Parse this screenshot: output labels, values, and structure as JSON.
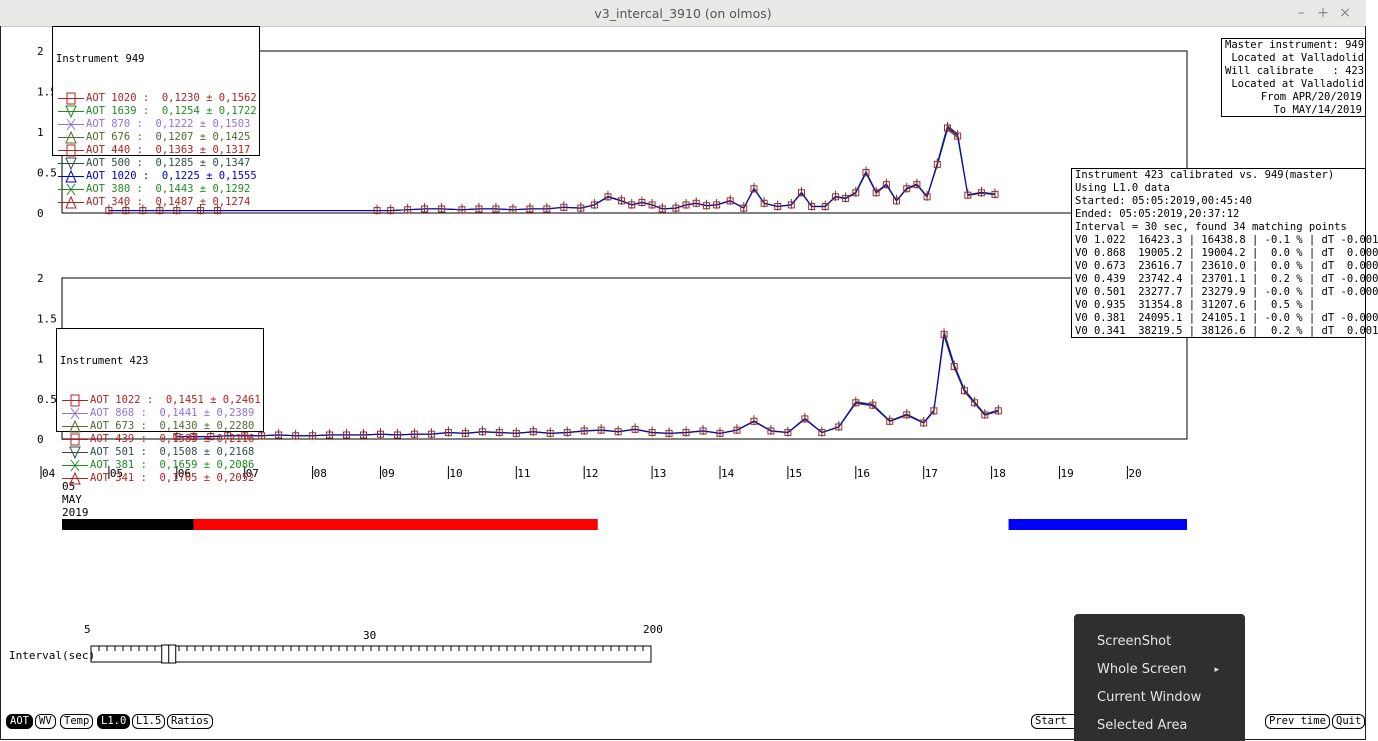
{
  "window": {
    "title": "v3_intercal_3910 (on olmos)",
    "buttons": {
      "minimize": "–",
      "maximize": "+",
      "close": "×"
    }
  },
  "top_plot": {
    "ytick_labels": [
      "2",
      "1.5",
      "1",
      "0.5",
      "0"
    ],
    "legend": {
      "title": "Instrument 949",
      "rows": [
        {
          "label": "AOT 1020 :",
          "value": "0,1230 ± 0,1562",
          "color": "#b22222",
          "marker": "square"
        },
        {
          "label": "AOT 1639 :",
          "value": "0,1254 ± 0,1722",
          "color": "#228b22",
          "marker": "triangle-down"
        },
        {
          "label": "AOT 870 :",
          "value": "0,1222 ± 0,1503",
          "color": "#9370db",
          "marker": "x"
        },
        {
          "label": "AOT 676 :",
          "value": "0,1207 ± 0,1425",
          "color": "#556b2f",
          "marker": "triangle-up"
        },
        {
          "label": "AOT 440 :",
          "value": "0,1363 ± 0,1317",
          "color": "#b22222",
          "marker": "square"
        },
        {
          "label": "AOT 500 :",
          "value": "0,1285 ± 0,1347",
          "color": "#2f4f4f",
          "marker": "triangle-down"
        },
        {
          "label": "AOT 1020 :",
          "value": "0,1225 ± 0,1555",
          "color": "#0000cd",
          "marker": "triangle-up"
        },
        {
          "label": "AOT 380 :",
          "value": "0,1443 ± 0,1292",
          "color": "#228b22",
          "marker": "x"
        },
        {
          "label": "AOT 340 :",
          "value": "0,1487 ± 0,1274",
          "color": "#b22222",
          "marker": "triangle-up"
        }
      ]
    }
  },
  "bottom_plot": {
    "ytick_labels": [
      "2",
      "1.5",
      "1",
      "0.5",
      "0"
    ],
    "legend": {
      "title": "Instrument 423",
      "rows": [
        {
          "label": "AOT 1022 :",
          "value": "0,1451 ± 0,2461",
          "color": "#b22222",
          "marker": "square"
        },
        {
          "label": "AOT 868 :",
          "value": "0,1441 ± 0,2389",
          "color": "#9370db",
          "marker": "x"
        },
        {
          "label": "AOT 673 :",
          "value": "0,1430 ± 0,2280",
          "color": "#556b2f",
          "marker": "triangle-up"
        },
        {
          "label": "AOT 439 :",
          "value": "0,1583 ± 0,2116",
          "color": "#b22222",
          "marker": "square"
        },
        {
          "label": "AOT 501 :",
          "value": "0,1508 ± 0,2168",
          "color": "#2f4f4f",
          "marker": "triangle-down"
        },
        {
          "label": "AOT 381 :",
          "value": "0,1659 ± 0,2086",
          "color": "#228b22",
          "marker": "x"
        },
        {
          "label": "AOT 341 :",
          "value": "0,1705 ± 0,2052",
          "color": "#b22222",
          "marker": "triangle-up"
        }
      ]
    }
  },
  "master_box": {
    "lines": [
      "Master instrument: 949",
      " Located at Valladolid",
      "Will calibrate   : 423",
      " Located at Valladolid",
      "     From APR/20/2019",
      "       To MAY/14/2019"
    ]
  },
  "calib_box": {
    "lines": [
      "Instrument 423 calibrated vs. 949(master)",
      "Using L1.0 data",
      "Started: 05:05:2019,00:45:40",
      "Ended: 05:05:2019,20:37:12",
      "Interval = 30 sec, found 34 matching points",
      "V0 1.022  16423.3 | 16438.8 | -0.1 % | dT -0.001",
      "V0 0.868  19005.2 | 19004.2 |  0.0 % | dT  0.000",
      "V0 0.673  23616.7 | 23610.0 |  0.0 % | dT  0.000",
      "V0 0.439  23742.4 | 23701.1 |  0.2 % | dT -0.000",
      "V0 0.501  23277.7 | 23279.9 | -0.0 % | dT -0.000",
      "V0 0.935  31354.8 | 31207.6 |  0.5 % |",
      "V0 0.381  24095.1 | 24105.1 | -0.0 % | dT -0.000",
      "V0 0.341  38219.5 | 38126.6 |  0.2 % | dT  0.001"
    ]
  },
  "x_axis": {
    "tick_labels": [
      "04",
      "05",
      "06",
      "07",
      "08",
      "09",
      "10",
      "11",
      "12",
      "13",
      "14",
      "15",
      "16",
      "17",
      "18",
      "19",
      "20"
    ],
    "date_labels": [
      "05",
      "MAY",
      "2019"
    ]
  },
  "status_bars": [
    {
      "color": "#000000",
      "start_day": 4.3,
      "end_day": 6.25
    },
    {
      "color": "#ff0000",
      "start_day": 6.25,
      "end_day": 12.2
    },
    {
      "color": "#0000ff",
      "start_day": 18.25,
      "end_day": 20.9
    }
  ],
  "interval_slider": {
    "label": "Interval(sec)",
    "min_label": "5",
    "mid_label": "30",
    "max_label": "200",
    "value": "30"
  },
  "bottom_buttons": {
    "aot": "AOT",
    "wv": "WV",
    "temp": "Temp",
    "l10": "L1.0",
    "l15": "L1.5",
    "ratios": "Ratios",
    "start": "Start",
    "prev_time": "Prev time",
    "quit": "Quit"
  },
  "context_menu": {
    "items": [
      "ScreenShot",
      "Whole Screen",
      "Current Window",
      "Selected Area"
    ],
    "submenu_arrow": "▸"
  },
  "series": {
    "top_instrument_949": {
      "x_day": [
        5.0,
        5.25,
        5.5,
        5.75,
        6.0,
        6.35,
        6.6,
        8.95,
        9.15,
        9.4,
        9.65,
        9.9,
        10.2,
        10.45,
        10.7,
        10.95,
        11.2,
        11.45,
        11.7,
        11.95,
        12.15,
        12.35,
        12.55,
        12.7,
        12.85,
        13.0,
        13.15,
        13.35,
        13.5,
        13.65,
        13.8,
        13.95,
        14.15,
        14.35,
        14.5,
        14.65,
        14.85,
        15.05,
        15.2,
        15.35,
        15.55,
        15.7,
        15.85,
        16.0,
        16.15,
        16.3,
        16.45,
        16.6,
        16.75,
        16.9,
        17.05,
        17.2,
        17.35,
        17.5,
        17.65,
        17.85,
        18.05
      ],
      "aot": [
        0.03,
        0.03,
        0.03,
        0.03,
        0.03,
        0.03,
        0.03,
        0.03,
        0.03,
        0.04,
        0.05,
        0.05,
        0.04,
        0.05,
        0.05,
        0.04,
        0.05,
        0.05,
        0.07,
        0.06,
        0.1,
        0.2,
        0.15,
        0.1,
        0.13,
        0.1,
        0.05,
        0.06,
        0.1,
        0.12,
        0.09,
        0.1,
        0.15,
        0.06,
        0.3,
        0.12,
        0.08,
        0.1,
        0.25,
        0.08,
        0.08,
        0.2,
        0.18,
        0.25,
        0.5,
        0.25,
        0.35,
        0.15,
        0.3,
        0.35,
        0.2,
        0.6,
        1.05,
        0.95,
        0.22,
        0.25,
        0.23
      ]
    },
    "bottom_instrument_423": {
      "x_day": [
        6.0,
        6.25,
        6.5,
        6.75,
        7.0,
        7.25,
        7.5,
        7.75,
        8.0,
        8.25,
        8.5,
        8.75,
        9.0,
        9.25,
        9.5,
        9.75,
        10.0,
        10.25,
        10.5,
        10.75,
        11.0,
        11.25,
        11.5,
        11.75,
        12.0,
        12.25,
        12.5,
        12.75,
        13.0,
        13.25,
        13.5,
        13.75,
        14.0,
        14.25,
        14.5,
        14.75,
        15.0,
        15.25,
        15.5,
        15.75,
        16.0,
        16.25,
        16.5,
        16.75,
        17.0,
        17.15,
        17.3,
        17.45,
        17.6,
        17.75,
        17.9,
        18.1
      ],
      "aot": [
        0.03,
        0.03,
        0.03,
        0.04,
        0.04,
        0.04,
        0.05,
        0.04,
        0.04,
        0.05,
        0.05,
        0.05,
        0.06,
        0.05,
        0.06,
        0.06,
        0.08,
        0.07,
        0.09,
        0.08,
        0.07,
        0.09,
        0.07,
        0.08,
        0.1,
        0.11,
        0.09,
        0.12,
        0.08,
        0.07,
        0.08,
        0.1,
        0.07,
        0.11,
        0.22,
        0.1,
        0.08,
        0.25,
        0.08,
        0.15,
        0.45,
        0.42,
        0.22,
        0.3,
        0.2,
        0.35,
        1.3,
        0.9,
        0.6,
        0.45,
        0.3,
        0.35
      ]
    }
  }
}
